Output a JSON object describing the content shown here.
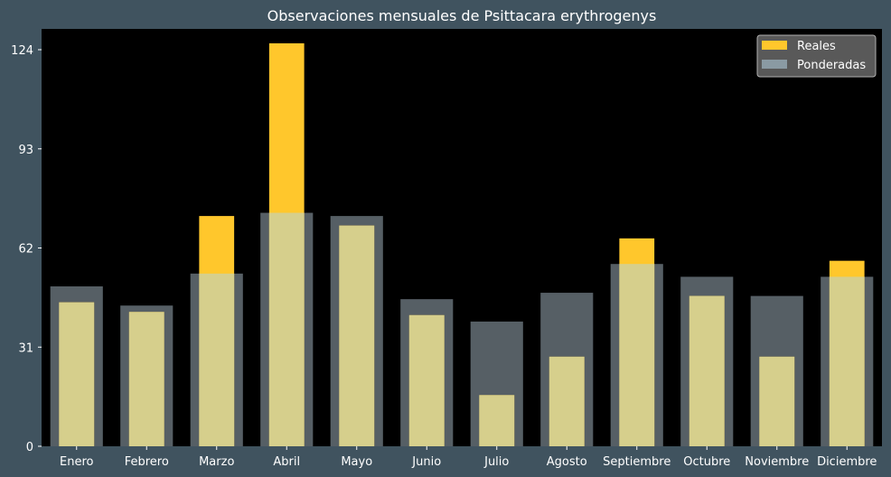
{
  "chart_data": {
    "type": "bar",
    "title": "Observaciones mensuales de Psittacara erythrogenys",
    "xlabel": "",
    "ylabel": "",
    "categories": [
      "Enero",
      "Febrero",
      "Marzo",
      "Abril",
      "Mayo",
      "Junio",
      "Julio",
      "Agosto",
      "Septiembre",
      "Octubre",
      "Noviembre",
      "Diciembre"
    ],
    "series": [
      {
        "name": "Reales",
        "color": "#ffc72c",
        "values": [
          45,
          42,
          72,
          126,
          69,
          41,
          16,
          28,
          65,
          47,
          28,
          58
        ]
      },
      {
        "name": "Ponderadas",
        "color": "#8a9aa3",
        "values": [
          50,
          44,
          54,
          73,
          72,
          46,
          39,
          48,
          57,
          53,
          47,
          53
        ]
      }
    ],
    "yticks": [
      0,
      31,
      62,
      93,
      124
    ],
    "ylim": [
      0,
      130.5
    ],
    "grid": false,
    "legend_position": "top-right",
    "colors": {
      "figure_background": "#40535f",
      "plot_background": "#000000",
      "overlap": "#d6cf8c",
      "text": "#ffffff"
    }
  }
}
